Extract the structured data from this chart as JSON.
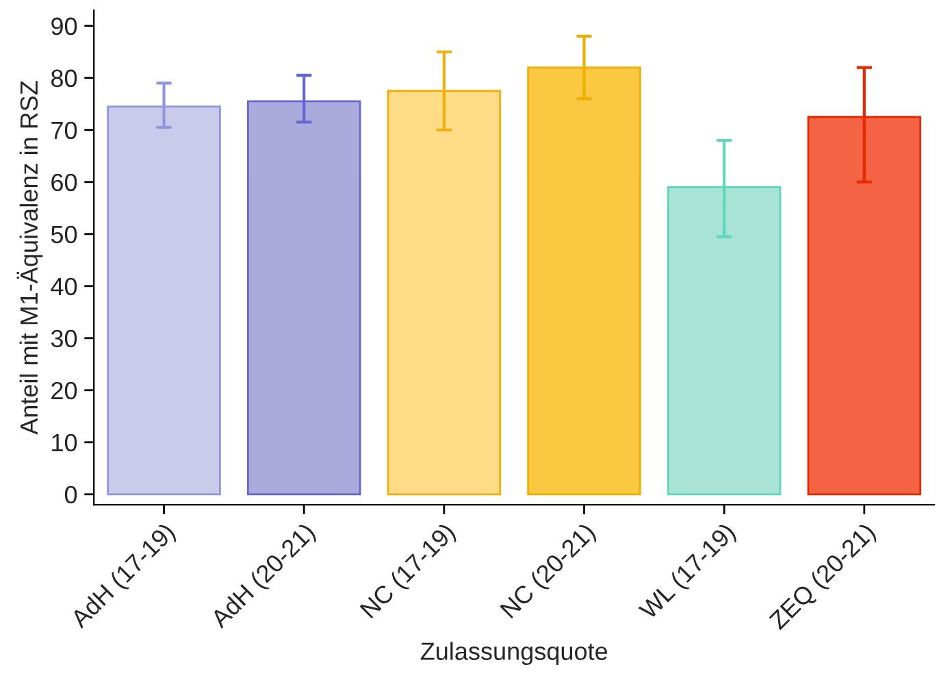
{
  "chart_data": {
    "type": "bar",
    "xlabel": "Zulassungsquote",
    "ylabel": "Anteil mit M1-Äquivalenz in RSZ",
    "categories": [
      "AdH (17-19)",
      "AdH (20-21)",
      "NC (17-19)",
      "NC (20-21)",
      "WL (17-19)",
      "ZEQ (20-21)"
    ],
    "values": [
      74.5,
      75.5,
      77.5,
      82,
      59,
      72.5
    ],
    "errors": [
      [
        70.5,
        79
      ],
      [
        71.5,
        80.5
      ],
      [
        70,
        85
      ],
      [
        76,
        88
      ],
      [
        49.5,
        68
      ],
      [
        60,
        82
      ]
    ],
    "colors": [
      "#cacbea",
      "#aaaadd",
      "#fddb87",
      "#fac941",
      "#a8e3d6",
      "#f36344"
    ],
    "ylim": [
      -2,
      93
    ],
    "yticks": [
      0,
      10,
      20,
      30,
      40,
      50,
      60,
      70,
      80,
      90
    ],
    "grid": false,
    "legend": false
  }
}
